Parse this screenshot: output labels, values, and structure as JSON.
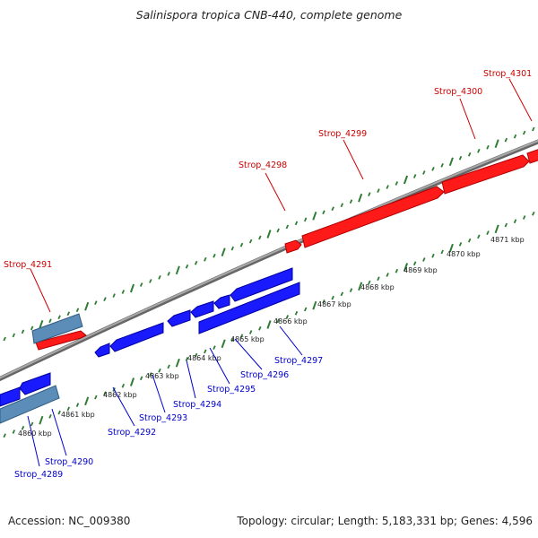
{
  "title": "Salinispora tropica CNB-440, complete genome",
  "footer": {
    "accession": "Accession: NC_009380",
    "summary": "Topology: circular; Length: 5,183,331 bp; Genes: 4,596"
  },
  "colors": {
    "backbone": "#888888",
    "forward_gene": "#ff1a1a",
    "reverse_gene": "#1a1aff",
    "other_feature": "#5b8db8",
    "ticks": "#2e7d32",
    "forward_label": "#cc0000",
    "reverse_label": "#0000cc"
  },
  "ruler_labels": {
    "4860": "4860 kbp",
    "4861": "4861 kbp",
    "4862": "4862 kbp",
    "4863": "4863 kbp",
    "4864": "4864 kbp",
    "4865": "4865 kbp",
    "4866": "4866 kbp",
    "4867": "4867 kbp",
    "4868": "4868 kbp",
    "4869": "4869 kbp",
    "4870": "4870 kbp",
    "4871": "4871 kbp"
  },
  "genes": {
    "Strop_4289": "Strop_4289",
    "Strop_4290": "Strop_4290",
    "Strop_4291": "Strop_4291",
    "Strop_4292": "Strop_4292",
    "Strop_4293": "Strop_4293",
    "Strop_4294": "Strop_4294",
    "Strop_4295": "Strop_4295",
    "Strop_4296": "Strop_4296",
    "Strop_4297": "Strop_4297",
    "Strop_4298": "Strop_4298",
    "Strop_4299": "Strop_4299",
    "Strop_4300": "Strop_4300",
    "Strop_4301": "Strop_4301"
  }
}
